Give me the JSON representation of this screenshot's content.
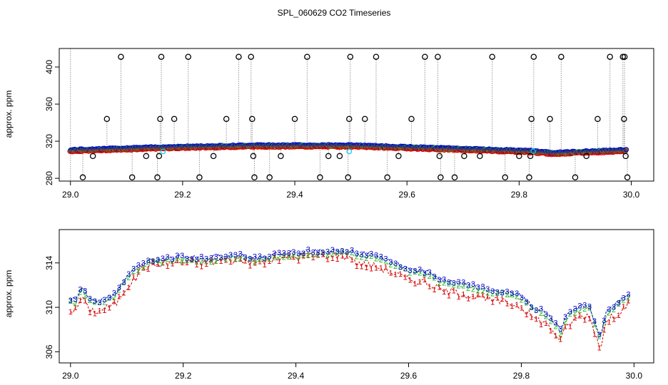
{
  "figure": {
    "title": "SPL_060629  CO2 Timeseries"
  },
  "chart_data": [
    {
      "type": "scatter",
      "panel": "top",
      "title": "",
      "xlabel": "",
      "ylabel": "approx. ppm",
      "xlim": [
        28.98,
        30.04
      ],
      "ylim": [
        277,
        420
      ],
      "xticks": [
        29.0,
        29.2,
        29.4,
        29.6,
        29.8,
        30.0
      ],
      "xtick_labels": [
        "29.0",
        "29.2",
        "29.4",
        "29.6",
        "29.8",
        "30.0"
      ],
      "yticks": [
        280,
        320,
        360,
        400
      ],
      "ytick_labels": [
        "280",
        "320",
        "360",
        "400"
      ],
      "baseline_segments": [
        {
          "x": [
            29.0,
            29.16,
            29.325
          ],
          "y": [
            310,
            313,
            315
          ]
        },
        {
          "x": [
            29.325,
            29.5
          ],
          "y": [
            315,
            315
          ]
        },
        {
          "x": [
            29.5,
            29.66
          ],
          "y": [
            315,
            312
          ]
        },
        {
          "x": [
            29.66,
            29.82
          ],
          "y": [
            312,
            309
          ]
        },
        {
          "x": [
            29.82,
            29.86,
            29.99
          ],
          "y": [
            309,
            307,
            310
          ]
        }
      ],
      "series_colors": {
        "1": "#d40000",
        "2": "#2db52d",
        "3": "#0000cc",
        "gap": "#00c8ff",
        "outlier": "#000000"
      },
      "outliers": [
        {
          "x": 29.022,
          "y": 281
        },
        {
          "x": 29.04,
          "y": 304
        },
        {
          "x": 29.065,
          "y": 344
        },
        {
          "x": 29.09,
          "y": 411
        },
        {
          "x": 29.11,
          "y": 281
        },
        {
          "x": 29.135,
          "y": 304
        },
        {
          "x": 29.155,
          "y": 281
        },
        {
          "x": 29.158,
          "y": 304
        },
        {
          "x": 29.16,
          "y": 344
        },
        {
          "x": 29.162,
          "y": 411
        },
        {
          "x": 29.185,
          "y": 344
        },
        {
          "x": 29.21,
          "y": 411
        },
        {
          "x": 29.23,
          "y": 281
        },
        {
          "x": 29.255,
          "y": 304
        },
        {
          "x": 29.278,
          "y": 344
        },
        {
          "x": 29.3,
          "y": 411
        },
        {
          "x": 29.322,
          "y": 411
        },
        {
          "x": 29.324,
          "y": 344
        },
        {
          "x": 29.326,
          "y": 304
        },
        {
          "x": 29.328,
          "y": 281
        },
        {
          "x": 29.355,
          "y": 281
        },
        {
          "x": 29.375,
          "y": 304
        },
        {
          "x": 29.4,
          "y": 344
        },
        {
          "x": 29.422,
          "y": 411
        },
        {
          "x": 29.445,
          "y": 281
        },
        {
          "x": 29.46,
          "y": 304
        },
        {
          "x": 29.48,
          "y": 304
        },
        {
          "x": 29.495,
          "y": 281
        },
        {
          "x": 29.497,
          "y": 344
        },
        {
          "x": 29.499,
          "y": 411
        },
        {
          "x": 29.525,
          "y": 344
        },
        {
          "x": 29.545,
          "y": 411
        },
        {
          "x": 29.565,
          "y": 281
        },
        {
          "x": 29.585,
          "y": 304
        },
        {
          "x": 29.608,
          "y": 344
        },
        {
          "x": 29.632,
          "y": 411
        },
        {
          "x": 29.655,
          "y": 411
        },
        {
          "x": 29.658,
          "y": 304
        },
        {
          "x": 29.66,
          "y": 281
        },
        {
          "x": 29.685,
          "y": 281
        },
        {
          "x": 29.702,
          "y": 304
        },
        {
          "x": 29.73,
          "y": 304
        },
        {
          "x": 29.752,
          "y": 411
        },
        {
          "x": 29.775,
          "y": 281
        },
        {
          "x": 29.8,
          "y": 304
        },
        {
          "x": 29.818,
          "y": 281
        },
        {
          "x": 29.82,
          "y": 304
        },
        {
          "x": 29.822,
          "y": 344
        },
        {
          "x": 29.826,
          "y": 411
        },
        {
          "x": 29.855,
          "y": 344
        },
        {
          "x": 29.875,
          "y": 411
        },
        {
          "x": 29.9,
          "y": 281
        },
        {
          "x": 29.92,
          "y": 304
        },
        {
          "x": 29.94,
          "y": 344
        },
        {
          "x": 29.962,
          "y": 411
        },
        {
          "x": 29.985,
          "y": 411
        },
        {
          "x": 29.987,
          "y": 344
        },
        {
          "x": 29.99,
          "y": 304
        },
        {
          "x": 29.993,
          "y": 281
        },
        {
          "x": 29.988,
          "y": 411
        }
      ]
    },
    {
      "type": "line",
      "panel": "bottom",
      "title": "",
      "xlabel": "",
      "ylabel": "approx. ppm",
      "xlim": [
        28.98,
        30.035
      ],
      "ylim": [
        305.0,
        317.0
      ],
      "xticks": [
        29.0,
        29.2,
        29.4,
        29.6,
        29.8,
        30.0
      ],
      "xtick_labels": [
        "29.0",
        "29.2",
        "29.4",
        "29.6",
        "29.8",
        "30.0"
      ],
      "yticks": [
        306,
        310,
        314
      ],
      "ytick_labels": [
        "306",
        "310",
        "314"
      ],
      "series": [
        {
          "name": "1",
          "marker": "1",
          "color": "#d40000",
          "offset_ppm": -0.7,
          "x": [
            29.0,
            29.01,
            29.02,
            29.03,
            29.05,
            29.06,
            29.08,
            29.1,
            29.12,
            29.14,
            29.17,
            29.2,
            29.24,
            29.28,
            29.3,
            29.33,
            29.37,
            29.42,
            29.47,
            29.5,
            29.55,
            29.6,
            29.63,
            29.66,
            29.7,
            29.72,
            29.74,
            29.78,
            29.8,
            29.82,
            29.84,
            29.86,
            29.87,
            29.88,
            29.9,
            29.92,
            29.93,
            29.94,
            29.95,
            29.97,
            29.99
          ],
          "y": [
            310.5,
            310.4,
            311.8,
            310.6,
            310.3,
            310.6,
            311.0,
            312.6,
            313.5,
            314.0,
            314.2,
            314.3,
            314.2,
            314.5,
            314.5,
            314.2,
            314.6,
            314.8,
            314.9,
            314.8,
            314.3,
            313.2,
            313.0,
            312.2,
            311.9,
            311.7,
            311.4,
            311.1,
            310.8,
            309.8,
            309.4,
            308.4,
            307.7,
            309.0,
            309.8,
            310.0,
            308.6,
            307.0,
            309.3,
            310.2,
            311.0
          ]
        },
        {
          "name": "2",
          "marker": "2",
          "color": "#2db52d",
          "offset_ppm": 0.0,
          "x": [
            29.0,
            29.01,
            29.02,
            29.03,
            29.05,
            29.06,
            29.08,
            29.1,
            29.12,
            29.14,
            29.17,
            29.2,
            29.24,
            29.28,
            29.3,
            29.33,
            29.37,
            29.42,
            29.47,
            29.5,
            29.55,
            29.6,
            29.63,
            29.66,
            29.7,
            29.72,
            29.74,
            29.78,
            29.8,
            29.82,
            29.84,
            29.86,
            29.87,
            29.88,
            29.9,
            29.92,
            29.93,
            29.94,
            29.95,
            29.97,
            29.99
          ],
          "y": [
            310.5,
            310.4,
            311.8,
            310.6,
            310.3,
            310.6,
            311.0,
            312.6,
            313.5,
            314.0,
            314.2,
            314.3,
            314.2,
            314.5,
            314.5,
            314.2,
            314.6,
            314.8,
            314.9,
            314.8,
            314.3,
            313.2,
            313.0,
            312.2,
            311.9,
            311.7,
            311.4,
            311.1,
            310.8,
            309.8,
            309.4,
            308.4,
            307.7,
            309.0,
            309.8,
            310.0,
            308.6,
            307.0,
            309.3,
            310.2,
            311.0
          ]
        },
        {
          "name": "3",
          "marker": "3",
          "color": "#0000cc",
          "offset_ppm": 0.25,
          "x": [
            29.0,
            29.01,
            29.02,
            29.03,
            29.05,
            29.06,
            29.08,
            29.1,
            29.12,
            29.14,
            29.17,
            29.2,
            29.24,
            29.28,
            29.3,
            29.33,
            29.37,
            29.42,
            29.47,
            29.5,
            29.55,
            29.6,
            29.63,
            29.66,
            29.7,
            29.72,
            29.74,
            29.78,
            29.8,
            29.82,
            29.84,
            29.86,
            29.87,
            29.88,
            29.9,
            29.92,
            29.93,
            29.94,
            29.95,
            29.97,
            29.99
          ],
          "y": [
            310.5,
            310.4,
            311.8,
            310.6,
            310.3,
            310.6,
            311.0,
            312.6,
            313.5,
            314.0,
            314.2,
            314.3,
            314.2,
            314.5,
            314.5,
            314.2,
            314.6,
            314.8,
            314.9,
            314.8,
            314.3,
            313.2,
            313.0,
            312.2,
            311.9,
            311.7,
            311.4,
            311.1,
            310.8,
            309.8,
            309.4,
            308.4,
            307.7,
            309.0,
            309.8,
            310.0,
            308.6,
            307.0,
            309.3,
            310.2,
            311.0
          ]
        }
      ]
    }
  ]
}
